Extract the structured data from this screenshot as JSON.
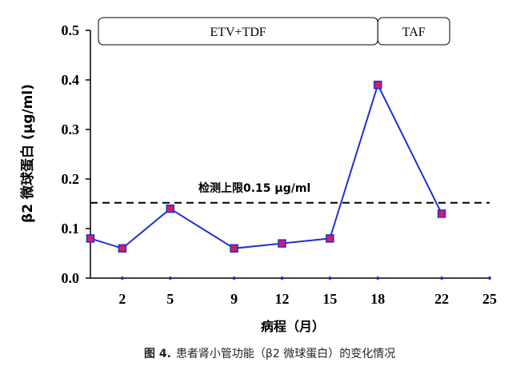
{
  "chart_data": {
    "type": "line",
    "ylabel": "β2 微球蛋白 (μg/ml)",
    "xlabel": "病程（月）",
    "caption_prefix": "图 4.",
    "caption_text": "患者肾小管功能（β2 微球蛋白）的变化情况",
    "ylim": [
      0,
      0.5
    ],
    "xlim": [
      0,
      25
    ],
    "y_ticks": [
      "0.0",
      "0.1",
      "0.2",
      "0.3",
      "0.4",
      "0.5"
    ],
    "y_tick_values": [
      0,
      0.1,
      0.2,
      0.3,
      0.4,
      0.5
    ],
    "x_ticks": [
      "2",
      "5",
      "9",
      "12",
      "15",
      "18",
      "22",
      "25"
    ],
    "x_tick_values": [
      2,
      5,
      9,
      12,
      15,
      18,
      22,
      25
    ],
    "series": [
      {
        "x": [
          0,
          2,
          5,
          9,
          12,
          15,
          18,
          22
        ],
        "y": [
          0.08,
          0.06,
          0.14,
          0.06,
          0.07,
          0.08,
          0.39,
          0.13
        ]
      }
    ],
    "line_color": "#1f2fd6",
    "marker_color": "#d81b60",
    "reference_line": {
      "value": 0.152,
      "label": "检测上限0.15 μg/ml"
    },
    "treatment_bands": [
      {
        "label": "ETV+TDF",
        "start": 0.5,
        "end": 18
      },
      {
        "label": "TAF",
        "start": 18,
        "end": 22.5
      }
    ]
  }
}
